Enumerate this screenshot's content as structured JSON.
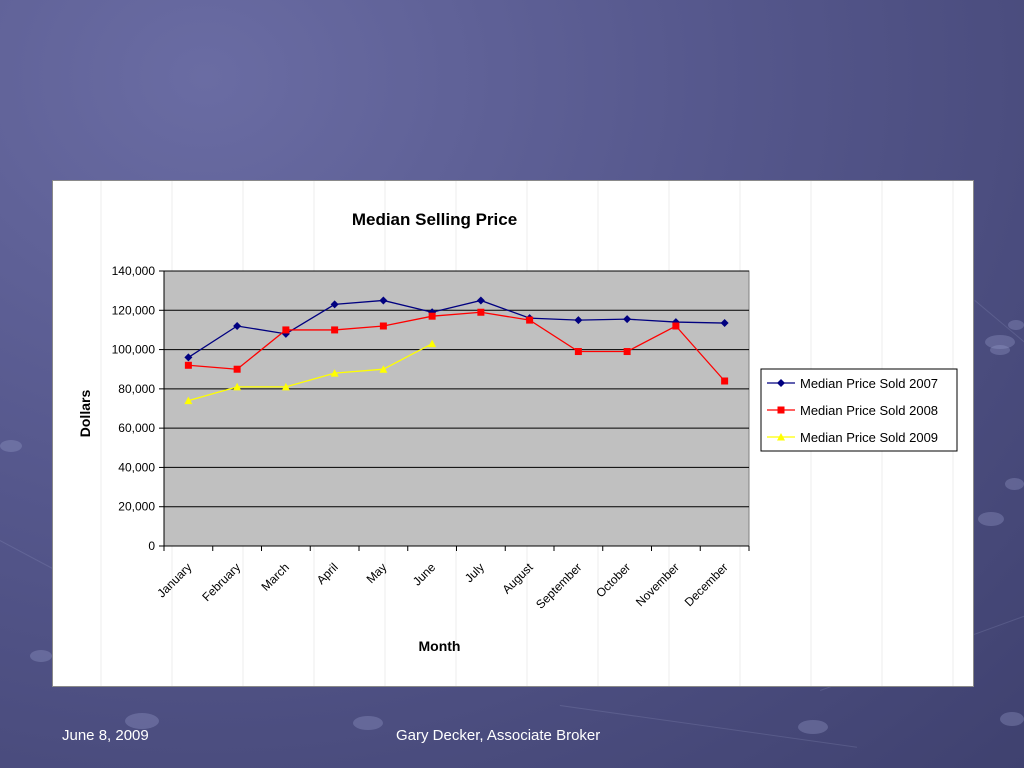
{
  "footer": {
    "date": "June 8, 2009",
    "presenter": "Gary Decker, Associate Broker"
  },
  "chart_data": {
    "type": "line",
    "title": "Median Selling Price",
    "xlabel": "Month",
    "ylabel": "Dollars",
    "ylim": [
      0,
      140000
    ],
    "yticks": [
      0,
      20000,
      40000,
      60000,
      80000,
      100000,
      120000,
      140000
    ],
    "ytick_labels": [
      "0",
      "20,000",
      "40,000",
      "60,000",
      "80,000",
      "100,000",
      "120,000",
      "140,000"
    ],
    "categories": [
      "January",
      "February",
      "March",
      "April",
      "May",
      "June",
      "July",
      "August",
      "September",
      "October",
      "November",
      "December"
    ],
    "grid": true,
    "plot_background": "#c0c0c0",
    "legend_position": "right",
    "series": [
      {
        "name": "Median Price Sold 2007",
        "color": "#000080",
        "marker": "diamond",
        "values": [
          96000,
          112000,
          108000,
          123000,
          125000,
          119000,
          125000,
          116000,
          115000,
          115500,
          114000,
          113500
        ]
      },
      {
        "name": "Median Price Sold 2008",
        "color": "#ff0000",
        "marker": "square",
        "values": [
          92000,
          90000,
          110000,
          110000,
          112000,
          117000,
          119000,
          115000,
          99000,
          99000,
          112000,
          84000
        ]
      },
      {
        "name": "Median Price Sold 2009",
        "color": "#ffff00",
        "marker": "triangle",
        "values": [
          74000,
          81000,
          81000,
          88000,
          90000,
          103000,
          null,
          null,
          null,
          null,
          null,
          null
        ]
      }
    ]
  }
}
